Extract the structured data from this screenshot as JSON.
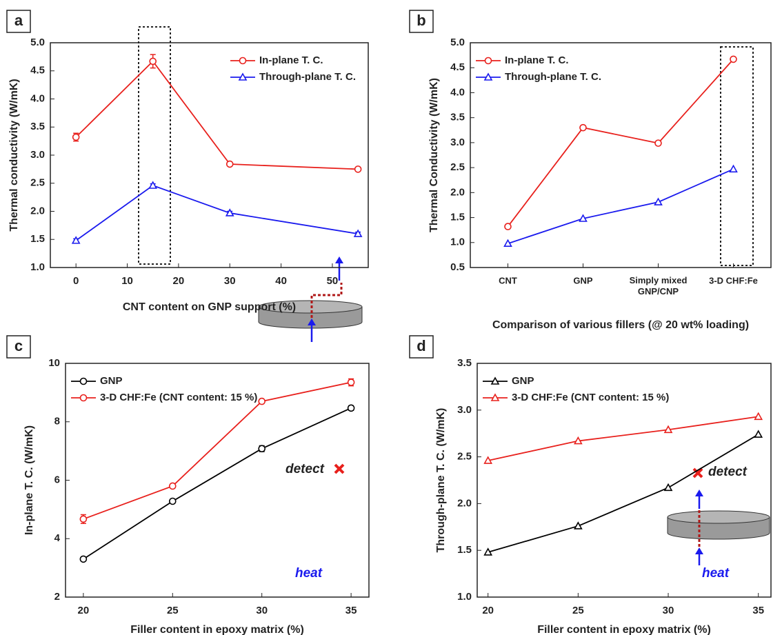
{
  "chart_data": [
    {
      "type": "line",
      "label": "a",
      "xlabel": "CNT content on GNP support (%)",
      "ylabel": "Thermal conductivity (W/mK)",
      "x": [
        0,
        15,
        30,
        55
      ],
      "series": [
        {
          "name": "In-plane T. C.",
          "color": "#e8201c",
          "marker": "circle",
          "values": [
            3.32,
            4.67,
            2.84,
            2.75
          ],
          "errors": [
            0.07,
            0.12,
            0.03,
            0.03
          ]
        },
        {
          "name": "Through-plane T. C.",
          "color": "#1a1aee",
          "marker": "triangle",
          "values": [
            1.48,
            2.46,
            1.97,
            1.6
          ],
          "errors": [
            0.03,
            0.03,
            0.03,
            0.03
          ]
        }
      ],
      "xlim": [
        -5,
        57
      ],
      "xticks": [
        0,
        10,
        20,
        30,
        40,
        50
      ],
      "ylim": [
        1,
        5
      ],
      "yticks": [
        {
          "value": 1,
          "label": "1.0"
        },
        1.5,
        {
          "value": 2,
          "label": "2.0"
        },
        2.5,
        {
          "value": 3,
          "label": "3.0"
        },
        3.5,
        {
          "value": 4,
          "label": "4.0"
        },
        4.5,
        {
          "value": 5,
          "label": "5.0"
        }
      ],
      "legend": "upper right",
      "grid": false
    },
    {
      "type": "line",
      "label": "b",
      "xlabel": "Comparison of various fillers (@ 20 wt% loading)",
      "ylabel": "Thermal Conductivity (W/mK)",
      "categories": [
        "CNT",
        "GNP",
        "Simply mixed GNP/CNP",
        "3-D CHF:Fe"
      ],
      "series": [
        {
          "name": "In-plane T. C.",
          "color": "#e8201c",
          "marker": "circle",
          "values": [
            1.32,
            3.3,
            2.99,
            4.67
          ]
        },
        {
          "name": "Through-plane T. C.",
          "color": "#1a1aee",
          "marker": "triangle",
          "values": [
            0.98,
            1.48,
            1.81,
            2.47
          ]
        }
      ],
      "ylim": [
        0.5,
        5
      ],
      "yticks": [
        0.5,
        {
          "value": 1,
          "label": "1.0"
        },
        1.5,
        {
          "value": 2,
          "label": "2.0"
        },
        2.5,
        {
          "value": 3,
          "label": "3.0"
        },
        3.5,
        {
          "value": 4,
          "label": "4.0"
        },
        4.5,
        {
          "value": 5,
          "label": "5.0"
        }
      ],
      "legend": "upper left",
      "grid": false
    },
    {
      "type": "line",
      "label": "c",
      "xlabel": "Filler content in epoxy matrix (%)",
      "ylabel": "In-plane T. C. (W/mK)",
      "x": [
        20,
        25,
        30,
        35
      ],
      "series": [
        {
          "name": "GNP",
          "color": "#000000",
          "marker": "circle",
          "values": [
            3.3,
            5.28,
            7.08,
            8.47
          ],
          "errors": [
            0.06,
            0.06,
            0.1,
            0.08
          ]
        },
        {
          "name": "3-D CHF:Fe (CNT content: 15 %)",
          "color": "#e8201c",
          "marker": "circle",
          "values": [
            4.67,
            5.8,
            8.7,
            9.35
          ],
          "errors": [
            0.15,
            0.06,
            0.06,
            0.12
          ]
        }
      ],
      "xlim": [
        19,
        36
      ],
      "xticks": [
        20,
        25,
        30,
        35
      ],
      "ylim": [
        2,
        10
      ],
      "yticks": [
        2,
        4,
        6,
        8,
        10
      ],
      "legend": "upper left",
      "grid": false,
      "annotations": [
        "detect",
        "heat"
      ]
    },
    {
      "type": "line",
      "label": "d",
      "xlabel": "Filler content in epoxy matrix (%)",
      "ylabel": "Through-plane T. C. (W/mK)",
      "x": [
        20,
        25,
        30,
        35
      ],
      "series": [
        {
          "name": "GNP",
          "color": "#000000",
          "marker": "triangle",
          "values": [
            1.48,
            1.76,
            2.17,
            2.74
          ]
        },
        {
          "name": "3-D CHF:Fe (CNT content: 15 %)",
          "color": "#e8201c",
          "marker": "triangle",
          "values": [
            2.46,
            2.67,
            2.79,
            2.93
          ]
        }
      ],
      "xlim": [
        19.4,
        35.7
      ],
      "xticks": [
        20,
        25,
        30,
        35
      ],
      "ylim": [
        1,
        3.5
      ],
      "yticks": [
        {
          "value": 1,
          "label": "1.0"
        },
        1.5,
        {
          "value": 2,
          "label": "2.0"
        },
        2.5,
        {
          "value": 3,
          "label": "3.0"
        },
        3.5
      ],
      "legend": "upper left",
      "grid": false,
      "annotations": [
        "detect",
        "heat"
      ]
    }
  ]
}
